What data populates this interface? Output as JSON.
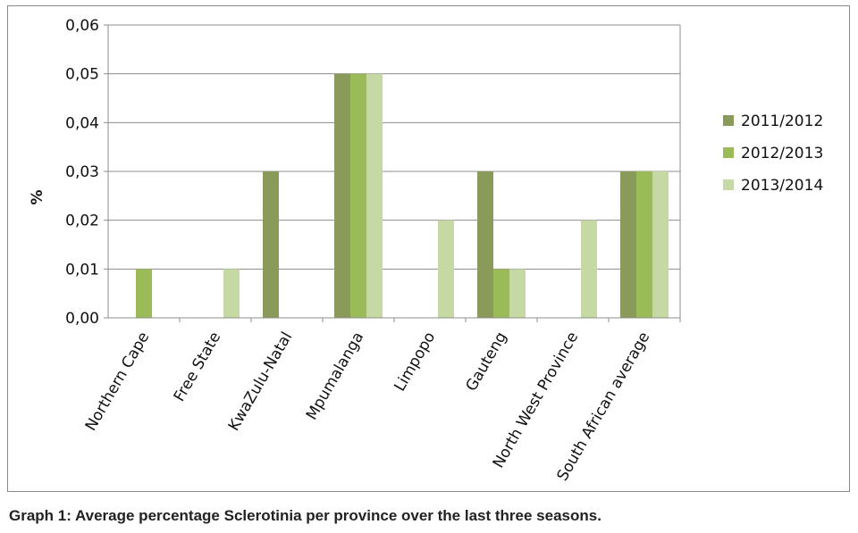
{
  "caption": "Graph 1: Average percentage Sclerotinia per province over the last three seasons.",
  "chart_data": {
    "type": "bar",
    "title": "",
    "xlabel": "",
    "ylabel": "%",
    "ylim": [
      0,
      0.06
    ],
    "y_ticks": [
      "0,00",
      "0,01",
      "0,02",
      "0,03",
      "0,04",
      "0,05",
      "0,06"
    ],
    "grid": true,
    "legend_position": "right",
    "categories": [
      "Northern Cape",
      "Free State",
      "KwaZulu-Natal",
      "Mpumalanga",
      "Limpopo",
      "Gauteng",
      "North West Province",
      "South African average"
    ],
    "series": [
      {
        "name": "2011/2012",
        "color": "#8a9a5b",
        "values": [
          0,
          0,
          0.03,
          0.05,
          0,
          0.03,
          0,
          0.03
        ]
      },
      {
        "name": "2012/2013",
        "color": "#9bbb59",
        "values": [
          0.01,
          0,
          0,
          0.05,
          0,
          0.01,
          0,
          0.03
        ]
      },
      {
        "name": "2013/2014",
        "color": "#c6d9a4",
        "values": [
          0,
          0.01,
          0,
          0.05,
          0.02,
          0.01,
          0.02,
          0.03
        ]
      }
    ]
  }
}
